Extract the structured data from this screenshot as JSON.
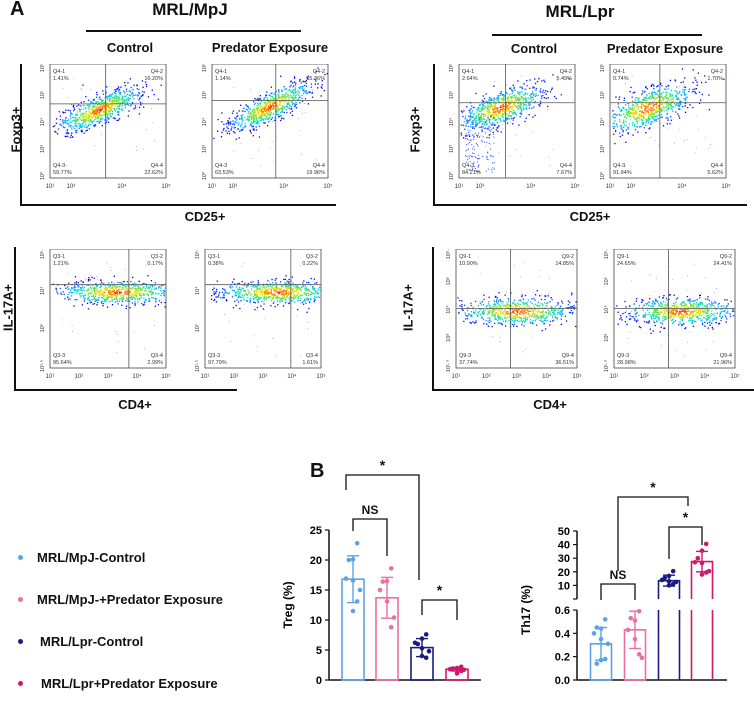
{
  "panelA": {
    "letter": "A",
    "groups": [
      {
        "title": "MRL/MpJ",
        "conditions": [
          "Control",
          "Predator Exposure"
        ]
      },
      {
        "title": "MRL/Lpr",
        "conditions": [
          "Control",
          "Predator Exposure"
        ]
      }
    ],
    "rows": [
      {
        "ylabel": "Foxp3+",
        "xlabel": "CD25+"
      },
      {
        "ylabel": "IL-17A+",
        "xlabel": "CD4+"
      }
    ],
    "plots": [
      {
        "id": "mpj-ctrl-treg",
        "xticks": [
          "10¹",
          "10³",
          "10⁴",
          "10⁵"
        ],
        "yticks": [
          "10⁶",
          "10⁵",
          "10⁴",
          "10³",
          "10⁰"
        ],
        "quadrants": [
          {
            "name": "Q4-1",
            "pct": "1.41%"
          },
          {
            "name": "Q4-2",
            "pct": "16.20%"
          },
          {
            "name": "Q4-3",
            "pct": "59.77%"
          },
          {
            "name": "Q4-4",
            "pct": "22.62%"
          }
        ]
      },
      {
        "id": "mpj-pe-treg",
        "xticks": [
          "10¹",
          "10³",
          "10⁴",
          "10⁵"
        ],
        "yticks": [
          "10⁶",
          "10⁵",
          "10⁴",
          "10³",
          "10⁰"
        ],
        "quadrants": [
          {
            "name": "Q4-1",
            "pct": "1.14%"
          },
          {
            "name": "Q4-2",
            "pct": "15.36%"
          },
          {
            "name": "Q4-3",
            "pct": "63.53%"
          },
          {
            "name": "Q4-4",
            "pct": "19.96%"
          }
        ]
      },
      {
        "id": "lpr-ctrl-treg",
        "xticks": [
          "10¹",
          "10³",
          "10⁴",
          "10⁵"
        ],
        "yticks": [
          "10⁶",
          "10⁵",
          "10⁴",
          "10³",
          "10⁰"
        ],
        "quadrants": [
          {
            "name": "Q4-1",
            "pct": "2.64%"
          },
          {
            "name": "Q4-2",
            "pct": "5.49%"
          },
          {
            "name": "Q4-3",
            "pct": "84.21%"
          },
          {
            "name": "Q4-4",
            "pct": "7.67%"
          }
        ]
      },
      {
        "id": "lpr-pe-treg",
        "xticks": [
          "10¹",
          "10³",
          "10⁴",
          "10⁵"
        ],
        "yticks": [
          "10⁶",
          "10⁵",
          "10⁴",
          "10³",
          "10⁰"
        ],
        "quadrants": [
          {
            "name": "Q4-1",
            "pct": "0.74%"
          },
          {
            "name": "Q4-2",
            "pct": "1.70%"
          },
          {
            "name": "Q4-3",
            "pct": "91.94%"
          },
          {
            "name": "Q4-4",
            "pct": "5.62%"
          }
        ]
      },
      {
        "id": "mpj-ctrl-th17",
        "xticks": [
          "10¹",
          "10²",
          "10³",
          "10⁴",
          "10⁵"
        ],
        "yticks": [
          "10⁵·⁵",
          "10⁴",
          "10³",
          "10¹·⁵"
        ],
        "quadrants": [
          {
            "name": "Q3-1",
            "pct": "1.21%"
          },
          {
            "name": "Q3-2",
            "pct": "0.17%"
          },
          {
            "name": "Q3-3",
            "pct": "95.64%"
          },
          {
            "name": "Q3-4",
            "pct": "2.99%"
          }
        ]
      },
      {
        "id": "mpj-pe-th17",
        "xticks": [
          "10¹",
          "10²",
          "10³",
          "10⁴",
          "10⁵"
        ],
        "yticks": [
          "10⁵·⁵",
          "10⁴",
          "10³",
          "10¹·⁵"
        ],
        "quadrants": [
          {
            "name": "Q3-1",
            "pct": "0.38%"
          },
          {
            "name": "Q3-2",
            "pct": "0.22%"
          },
          {
            "name": "Q3-3",
            "pct": "97.79%"
          },
          {
            "name": "Q3-4",
            "pct": "1.61%"
          }
        ]
      },
      {
        "id": "lpr-ctrl-th17",
        "xticks": [
          "10¹",
          "10²",
          "10³",
          "10⁴",
          "10⁵"
        ],
        "yticks": [
          "10⁵·⁹",
          "10⁵",
          "10⁴",
          "10³",
          "10¹·⁹"
        ],
        "quadrants": [
          {
            "name": "Q9-1",
            "pct": "10.90%"
          },
          {
            "name": "Q9-2",
            "pct": "14.85%"
          },
          {
            "name": "Q9-3",
            "pct": "37.74%"
          },
          {
            "name": "Q9-4",
            "pct": "36.51%"
          }
        ]
      },
      {
        "id": "lpr-pe-th17",
        "xticks": [
          "10¹",
          "10²",
          "10³",
          "10⁴",
          "10⁵"
        ],
        "yticks": [
          "10⁵·⁹",
          "10⁵",
          "10⁴",
          "10³",
          "10¹·⁹"
        ],
        "quadrants": [
          {
            "name": "Q9-1",
            "pct": "24.65%"
          },
          {
            "name": "Q9-2",
            "pct": "24.41%"
          },
          {
            "name": "Q9-3",
            "pct": "28.98%"
          },
          {
            "name": "Q9-4",
            "pct": "21.96%"
          }
        ]
      }
    ]
  },
  "legend": [
    {
      "label": "MRL/MpJ-Control",
      "color": "#5ba3e6"
    },
    {
      "label": "MRL/MpJ-+Predator Exposure",
      "color": "#ee6e9f"
    },
    {
      "label": "MRL/Lpr-Control",
      "color": "#1a1a80"
    },
    {
      "label": "MRL/Lpr+Predator Exposure",
      "color": "#d0186a"
    }
  ],
  "chart_data": [
    {
      "type": "bar",
      "panel": "B",
      "title": "",
      "ylabel": "Treg (%)",
      "xlabel": "",
      "ylim": [
        0,
        25
      ],
      "yticks": [
        "0",
        "5",
        "10",
        "15",
        "20",
        "25"
      ],
      "categories": [
        "MRL/MpJ-Control",
        "MRL/MpJ-+Predator Exposure",
        "MRL/Lpr-Control",
        "MRL/Lpr+Predator Exposure"
      ],
      "values": [
        16.8,
        13.7,
        5.4,
        1.8
      ],
      "sd": [
        3.9,
        3.4,
        1.5,
        0.3
      ],
      "points": [
        [
          22.8,
          20.1,
          20.0,
          16.9,
          16.6,
          15.0,
          13.1,
          11.5
        ],
        [
          18.6,
          16.5,
          16.4,
          15.0,
          13.1,
          10.4,
          8.8
        ],
        [
          7.6,
          6.9,
          6.0,
          6.2,
          5.3,
          4.8,
          3.7,
          4.0
        ],
        [
          2.2,
          2.0,
          1.9,
          1.8,
          1.9,
          1.7,
          1.5,
          1.1
        ]
      ],
      "colors": [
        "#5ba3e6",
        "#ee6e9f",
        "#1a1a80",
        "#d0186a"
      ],
      "annotations": [
        {
          "from": 0,
          "to": 1,
          "label": "NS"
        },
        {
          "from": 0.5,
          "to": 2.5,
          "label": "*"
        },
        {
          "from": 2,
          "to": 3,
          "label": "*"
        }
      ]
    },
    {
      "type": "bar",
      "title": "",
      "ylabel": "Th17 (%)",
      "xlabel": "",
      "ylim_lower": [
        0,
        0.6
      ],
      "ylim_upper": [
        10,
        50
      ],
      "yticks_lower": [
        "0.0",
        "0.2",
        "0.4",
        "0.6"
      ],
      "yticks_upper": [
        "10",
        "20",
        "30",
        "40",
        "50"
      ],
      "categories": [
        "MRL/MpJ-Control",
        "MRL/MpJ-+Predator Exposure",
        "MRL/Lpr-Control",
        "MRL/Lpr+Predator Exposure"
      ],
      "values": [
        0.31,
        0.43,
        13.5,
        27.5
      ],
      "sd": [
        0.14,
        0.16,
        4.0,
        7.5
      ],
      "points": [
        [
          0.52,
          0.44,
          0.45,
          0.4,
          0.35,
          0.31,
          0.18,
          0.17,
          0.14
        ],
        [
          0.59,
          0.51,
          0.53,
          0.43,
          0.35,
          0.19,
          0.22
        ],
        [
          20.5,
          17.0,
          15.5,
          14.0,
          13.0,
          12.5,
          11.0,
          10.0
        ],
        [
          40.5,
          35.5,
          30.0,
          27.0,
          26.5,
          20.5,
          19.5,
          18.0
        ]
      ],
      "colors": [
        "#5ba3e6",
        "#ee6e9f",
        "#1a1a80",
        "#d0186a"
      ],
      "annotations": [
        {
          "from": 0,
          "to": 1,
          "label": "NS"
        },
        {
          "from": 0.5,
          "to": 2.5,
          "label": "*"
        },
        {
          "from": 2,
          "to": 3,
          "label": "*"
        }
      ]
    }
  ]
}
